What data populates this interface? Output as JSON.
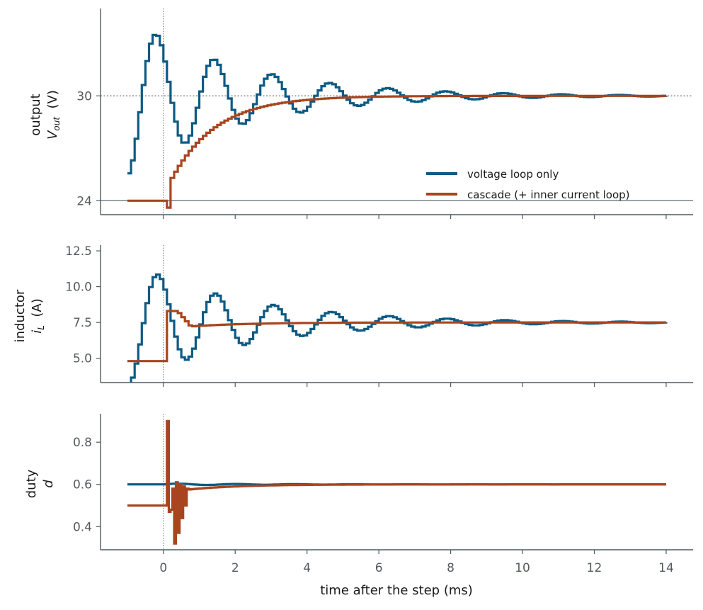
{
  "chart_data": {
    "type": "line",
    "shared_x": {
      "label": "time after the step  (ms)",
      "ticks": [
        0,
        2,
        4,
        6,
        8,
        10,
        12,
        14
      ],
      "tick_labels": [
        "0",
        "2",
        "4",
        "6",
        "8",
        "10",
        "12",
        "14"
      ],
      "range": [
        -1.75,
        14.75
      ]
    },
    "step_marker_x": 0,
    "legend": {
      "placement": "lower-right of top panel",
      "entries": [
        "voltage loop only",
        "cascade (+ inner current loop)"
      ]
    },
    "colors": {
      "voltage_only": "#0d5a83",
      "cascade": "#a8451f",
      "axis": "#4d5b60"
    },
    "panels": [
      {
        "id": "vout",
        "ylabel_line1": "output",
        "ylabel_line2_symbol": "V",
        "ylabel_line2_sub": "out",
        "ylabel_line2_unit": "(V)",
        "ylim": [
          23.2,
          35.0
        ],
        "yticks": [
          24,
          30
        ],
        "ytick_labels": [
          "24",
          "30"
        ],
        "hlines": [
          {
            "y": 30,
            "style": "dotted"
          },
          {
            "y": 24,
            "style": "solid"
          }
        ],
        "series": [
          {
            "name": "voltage loop only",
            "kind": "voltage_vout",
            "initial": 31.8,
            "final": 30,
            "amp": -4.5,
            "tau": 3.1,
            "freq": 0.62,
            "phase": 0.17,
            "start": -1,
            "end": 14,
            "t0": -1,
            "step": 0.1
          },
          {
            "name": "cascade (+ inner current loop)",
            "kind": "cascade_vout",
            "initial": 24,
            "final": 30,
            "tau": 1.25,
            "dip": 23.6,
            "start": -1,
            "end": 14,
            "t0": 0.1,
            "step": 0.1
          }
        ]
      },
      {
        "id": "il",
        "ylabel_line1": "inductor",
        "ylabel_line2_symbol": "i",
        "ylabel_line2_sub": "L",
        "ylabel_line2_unit": "(A)",
        "ylim": [
          3.3,
          12.9
        ],
        "yticks": [
          5.0,
          7.5,
          10.0,
          12.5
        ],
        "ytick_labels": [
          "5.0",
          "7.5",
          "10.0",
          "12.5"
        ],
        "series": [
          {
            "name": "voltage loop only",
            "kind": "voltage_il",
            "initial": 12.5,
            "final": 7.5,
            "amp": -4.3,
            "tau": 3.2,
            "freq": 0.62,
            "phase": 0.0,
            "start": -1,
            "end": 14,
            "t0": -1.0,
            "step": 0.1
          },
          {
            "name": "cascade (+ inner current loop)",
            "kind": "cascade_il",
            "initial": 4.8,
            "final": 7.5,
            "peak": 8.3,
            "low": 7.15,
            "tau": 1.6,
            "start": -1,
            "end": 14,
            "t0": 0.1,
            "step": 0.1
          }
        ]
      },
      {
        "id": "duty",
        "ylabel_line1": "duty",
        "ylabel_line2_symbol": "d",
        "ylabel_line2_sub": "",
        "ylabel_line2_unit": "",
        "ylim": [
          0.29,
          0.935
        ],
        "yticks": [
          0.4,
          0.6,
          0.8
        ],
        "ytick_labels": [
          "0.4",
          "0.6",
          "0.8"
        ],
        "series": [
          {
            "name": "voltage loop only",
            "kind": "voltage_duty",
            "initial": 0.6,
            "final": 0.6,
            "amp": 0.004,
            "tau": 3.0,
            "freq": 0.62,
            "start": -1,
            "end": 14,
            "t0": 0,
            "step": 0.05
          },
          {
            "name": "cascade (+ inner current loop)",
            "kind": "cascade_duty",
            "initial": 0.5,
            "final": 0.6,
            "spikes": [
              [
                0.1,
                0.9
              ],
              [
                0.15,
                0.47
              ],
              [
                0.2,
                0.48
              ],
              [
                0.25,
                0.58
              ],
              [
                0.3,
                0.32
              ],
              [
                0.35,
                0.61
              ],
              [
                0.4,
                0.37
              ],
              [
                0.45,
                0.6
              ],
              [
                0.5,
                0.44
              ],
              [
                0.55,
                0.59
              ],
              [
                0.6,
                0.5
              ],
              [
                0.65,
                0.58
              ]
            ],
            "tau": 1.4,
            "start": -1,
            "end": 14,
            "step": 0.05
          }
        ]
      }
    ]
  }
}
